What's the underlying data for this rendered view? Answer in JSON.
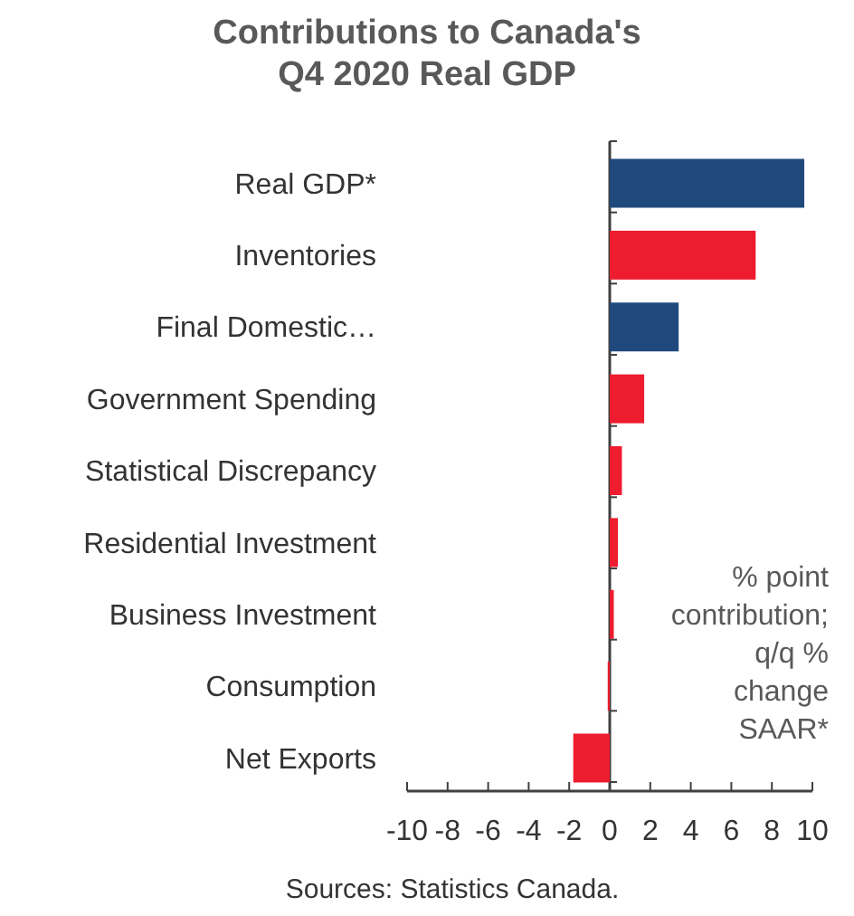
{
  "chart_data": {
    "type": "bar",
    "orientation": "horizontal",
    "title": "Contributions to Canada's\nQ4 2020 Real GDP",
    "categories": [
      "Real GDP*",
      "Inventories",
      "Final Domestic…",
      "Government Spending",
      "Statistical Discrepancy",
      "Residential Investment",
      "Business Investment",
      "Consumption",
      "Net Exports"
    ],
    "values": [
      9.6,
      7.2,
      3.4,
      1.7,
      0.6,
      0.4,
      0.2,
      -0.1,
      -1.8
    ],
    "colors": [
      "#1f497d",
      "#ed1c2e",
      "#1f497d",
      "#ed1c2e",
      "#ed1c2e",
      "#ed1c2e",
      "#ed1c2e",
      "#ed1c2e",
      "#ed1c2e"
    ],
    "xlim": [
      -10,
      10
    ],
    "xticks": [
      -10,
      -8,
      -6,
      -4,
      -2,
      0,
      2,
      4,
      6,
      8,
      10
    ],
    "annotations": [
      "% point\ncontribution;\nq/q %\nchange\nSAAR*",
      "Sources: Statistics Canada."
    ]
  }
}
